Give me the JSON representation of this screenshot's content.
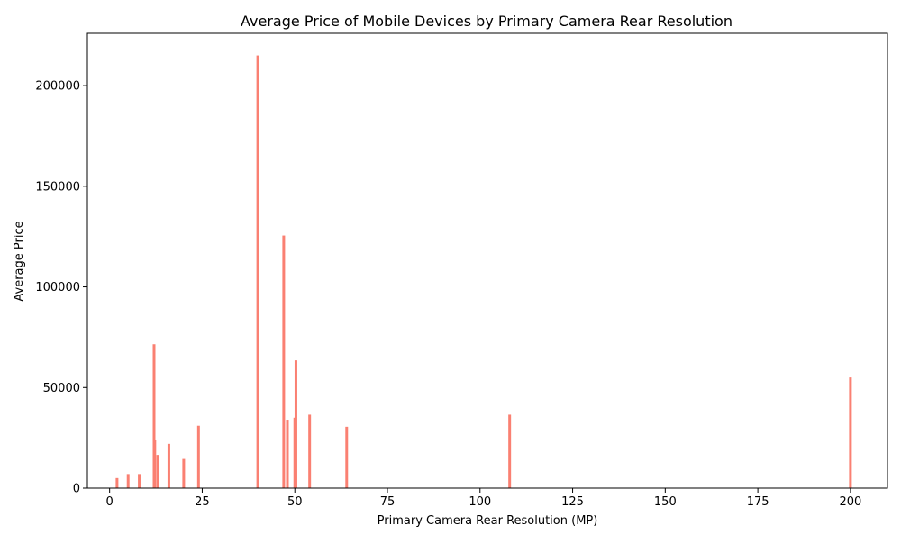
{
  "chart_data": {
    "type": "bar",
    "title": "Average Price of Mobile Devices by Primary Camera Rear Resolution",
    "xlabel": "Primary Camera Rear Resolution (MP)",
    "ylabel": "Average Price",
    "xlim": [
      -6,
      210
    ],
    "ylim": [
      0,
      226000
    ],
    "xticks": [
      0,
      25,
      50,
      75,
      100,
      125,
      150,
      175,
      200
    ],
    "yticks": [
      0,
      50000,
      100000,
      150000,
      200000
    ],
    "grid": false,
    "legend": "none",
    "bar_color": "#fa8072",
    "x": [
      2,
      5,
      8,
      12,
      12.2,
      13,
      16,
      20,
      24,
      40,
      47,
      48,
      50,
      50.3,
      54,
      64,
      108,
      200
    ],
    "values": [
      5000,
      7000,
      7000,
      71500,
      24000,
      16500,
      22000,
      14500,
      31000,
      215000,
      125500,
      34000,
      35000,
      63500,
      36500,
      30500,
      36500,
      55000
    ]
  }
}
